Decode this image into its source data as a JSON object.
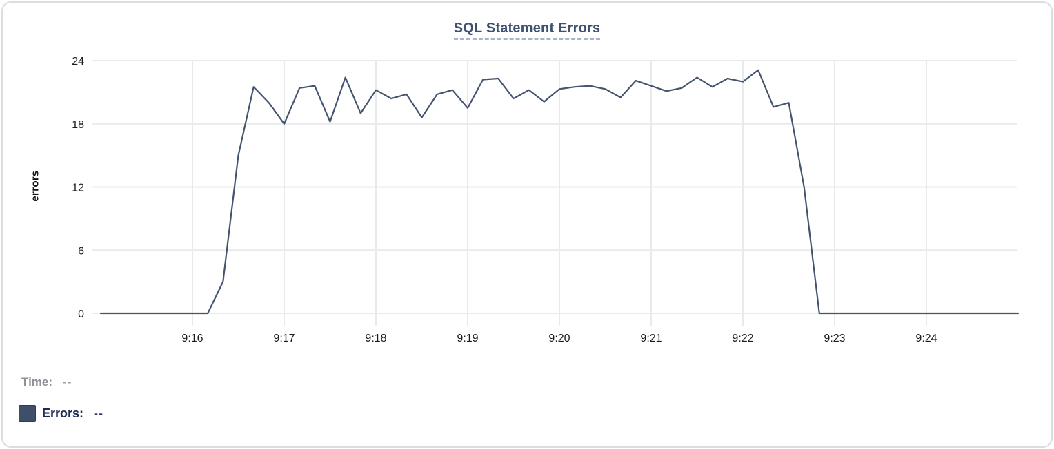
{
  "chart_data": {
    "type": "line",
    "title": "SQL Statement Errors",
    "xlabel": "",
    "ylabel": "errors",
    "ylim": [
      0,
      24
    ],
    "yticks": [
      0,
      6,
      12,
      18,
      24
    ],
    "grid": true,
    "legend_position": "bottom-left",
    "x_range": [
      "9:15:00",
      "9:25:00"
    ],
    "xticks": [
      {
        "label": "9:16",
        "time": "9:16:00"
      },
      {
        "label": "9:17",
        "time": "9:17:00"
      },
      {
        "label": "9:18",
        "time": "9:18:00"
      },
      {
        "label": "9:19",
        "time": "9:19:00"
      },
      {
        "label": "9:20",
        "time": "9:20:00"
      },
      {
        "label": "9:21",
        "time": "9:21:00"
      },
      {
        "label": "9:22",
        "time": "9:22:00"
      },
      {
        "label": "9:23",
        "time": "9:23:00"
      },
      {
        "label": "9:24",
        "time": "9:24:00"
      }
    ],
    "x": [
      "9:15:00",
      "9:15:10",
      "9:15:20",
      "9:15:30",
      "9:15:40",
      "9:15:50",
      "9:16:00",
      "9:16:10",
      "9:16:20",
      "9:16:30",
      "9:16:40",
      "9:16:50",
      "9:17:00",
      "9:17:10",
      "9:17:20",
      "9:17:30",
      "9:17:40",
      "9:17:50",
      "9:18:00",
      "9:18:10",
      "9:18:20",
      "9:18:30",
      "9:18:40",
      "9:18:50",
      "9:19:00",
      "9:19:10",
      "9:19:20",
      "9:19:30",
      "9:19:40",
      "9:19:50",
      "9:20:00",
      "9:20:10",
      "9:20:20",
      "9:20:30",
      "9:20:40",
      "9:20:50",
      "9:21:00",
      "9:21:10",
      "9:21:20",
      "9:21:30",
      "9:21:40",
      "9:21:50",
      "9:22:00",
      "9:22:10",
      "9:22:20",
      "9:22:30",
      "9:22:40",
      "9:22:50",
      "9:23:00",
      "9:23:10",
      "9:23:20",
      "9:23:30",
      "9:23:40",
      "9:23:50",
      "9:24:00",
      "9:24:10",
      "9:24:20",
      "9:24:30",
      "9:24:40",
      "9:24:50",
      "9:25:00"
    ],
    "series": [
      {
        "name": "Errors",
        "color": "#44546e",
        "values": [
          0,
          0,
          0,
          0,
          0,
          0,
          0,
          0,
          3,
          15,
          21.5,
          20,
          18,
          21.4,
          21.6,
          18.2,
          22.4,
          19,
          21.2,
          20.4,
          20.8,
          18.6,
          20.8,
          21.2,
          19.5,
          22.2,
          22.3,
          20.4,
          21.2,
          20.1,
          21.3,
          21.5,
          21.6,
          21.3,
          20.5,
          22.1,
          21.6,
          21.1,
          21.4,
          22.4,
          21.5,
          22.3,
          22.0,
          23.1,
          19.6,
          20.0,
          12,
          0,
          0,
          0,
          0,
          0,
          0,
          0,
          0,
          0,
          0,
          0,
          0,
          0,
          0
        ]
      }
    ]
  },
  "tooltip": {
    "time_label": "Time:",
    "time_value": "--",
    "series_label": "Errors:",
    "series_value": "--",
    "swatch_color": "#3f4e69"
  },
  "colors": {
    "line": "#44546e",
    "title_text": "#3d5170",
    "title_underline": "#a6b3cf",
    "gridline": "#e9eaeb",
    "tick_text": "#1c1c1c",
    "time_text": "#8e9196",
    "errors_text": "#1d2b52",
    "card_border": "#dcdde1"
  }
}
